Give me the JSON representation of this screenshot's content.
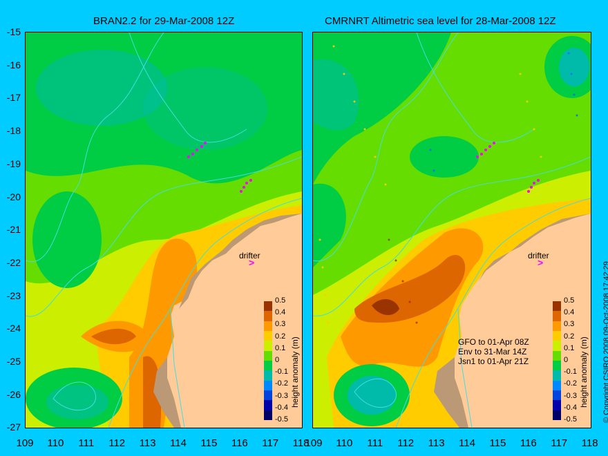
{
  "left_panel": {
    "title": "BRAN2.2 for 29-Mar-2008 12Z",
    "drifter_label": "drifter"
  },
  "right_panel": {
    "title": "CMRNRT Altimetric sea level  for 28-Mar-2008 12Z",
    "drifter_label": "drifter",
    "satellites": [
      "GFO to 01-Apr 08Z",
      "Env to 31-Mar 14Z",
      "Jsn1 to 01-Apr 21Z"
    ]
  },
  "y_axis_labels": [
    "-15",
    "-16",
    "-17",
    "-18",
    "-19",
    "-20",
    "-21",
    "-22",
    "-23",
    "-24",
    "-25",
    "-26",
    "-27"
  ],
  "x_axis_left": [
    "109",
    "110",
    "111",
    "112",
    "113",
    "114",
    "115",
    "116",
    "117",
    "118"
  ],
  "x_axis_right": [
    "109",
    "110",
    "111",
    "112",
    "113",
    "114",
    "115",
    "116",
    "117",
    "118"
  ],
  "colorbar": {
    "title": "height anomaly (m)",
    "ticks": [
      "0.5",
      "0.4",
      "0.3",
      "0.2",
      "0.1",
      "0",
      "-0.1",
      "-0.2",
      "-0.3",
      "-0.4",
      "-0.5"
    ],
    "colors": [
      "#000066",
      "#0000aa",
      "#0044dd",
      "#0088ff",
      "#00bbaa",
      "#00cc44",
      "#66dd00",
      "#ccee00",
      "#ffcc00",
      "#ff9900",
      "#dd6600",
      "#993300"
    ]
  },
  "copyright": "© Copyright CSIRO 2008    09-Oct-2008 17:42:29",
  "colors": {
    "background": "#00ccff",
    "land": "#ffcc99",
    "coastline": "#44dddd",
    "drifter_track": "#ff00ff"
  }
}
